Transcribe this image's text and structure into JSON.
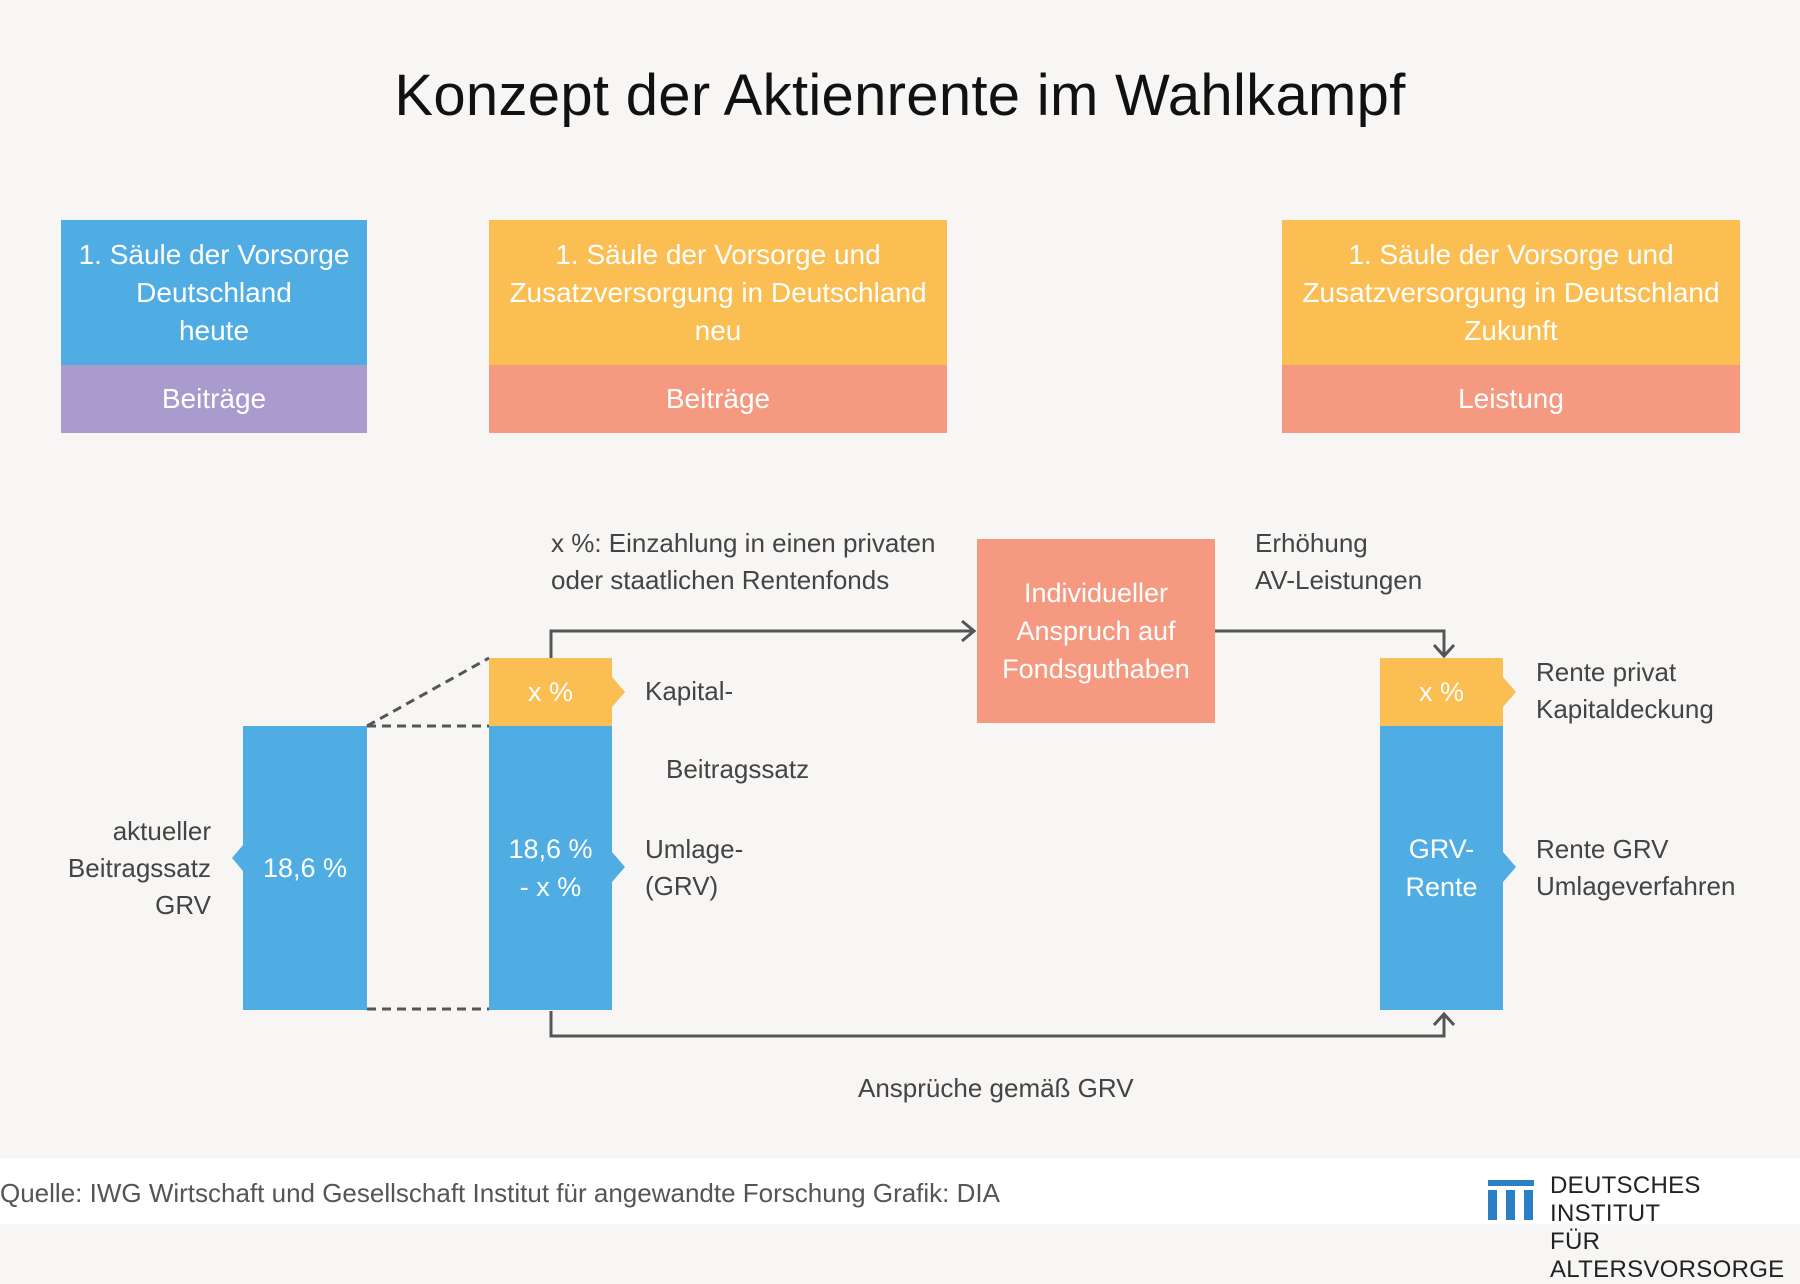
{
  "title": "Konzept der Aktienrente im Wahlkampf",
  "headers": [
    {
      "lines": [
        "1. Säule der Vorsorge",
        "Deutschland",
        "heute"
      ],
      "bottom": "Beiträge"
    },
    {
      "lines": [
        "1. Säule der Vorsorge und",
        "Zusatzversorgung in Deutschland",
        "neu"
      ],
      "bottom": "Beiträge"
    },
    {
      "lines": [
        "1. Säule der Vorsorge und",
        "Zusatzversorgung in Deutschland",
        "Zukunft"
      ],
      "bottom": "Leistung"
    }
  ],
  "diagram": {
    "left_bar": {
      "value": "18,6 %",
      "label": [
        "aktueller",
        "Beitragssatz",
        "GRV"
      ]
    },
    "mid_top": {
      "value": "x %",
      "label": "Kapital-"
    },
    "mid_middle_label": "Beitragssatz",
    "mid_bottom": {
      "value": [
        "18,6 %",
        "- x %"
      ],
      "label": [
        "Umlage-",
        "(GRV)"
      ]
    },
    "top_note": [
      "x %: Einzahlung in einen privaten",
      "oder staatlichen Rentenfonds"
    ],
    "fund_box": [
      "Individueller",
      "Anspruch auf",
      "Fondsguthaben"
    ],
    "increase_note": [
      "Erhöhung",
      "AV-Leistungen"
    ],
    "right_top": {
      "value": "x %",
      "label": [
        "Rente privat",
        "Kapitaldeckung"
      ]
    },
    "right_bottom": {
      "value": [
        "GRV-",
        "Rente"
      ],
      "label": [
        "Rente GRV",
        "Umlageverfahren"
      ]
    },
    "bottom_note": "Ansprüche gemäß GRV"
  },
  "footer": {
    "source": "Quelle: IWG Wirtschaft und Gesellschaft Institut für angewandte Forschung  Grafik: DIA",
    "logo_lines": [
      "DEUTSCHES INSTITUT",
      "FÜR ALTERSVORSORGE"
    ]
  },
  "colors": {
    "blue": "#4fade4",
    "orange": "#fbbe52",
    "salmon": "#f59a80",
    "purple": "#a99bcd",
    "line": "#555555"
  }
}
